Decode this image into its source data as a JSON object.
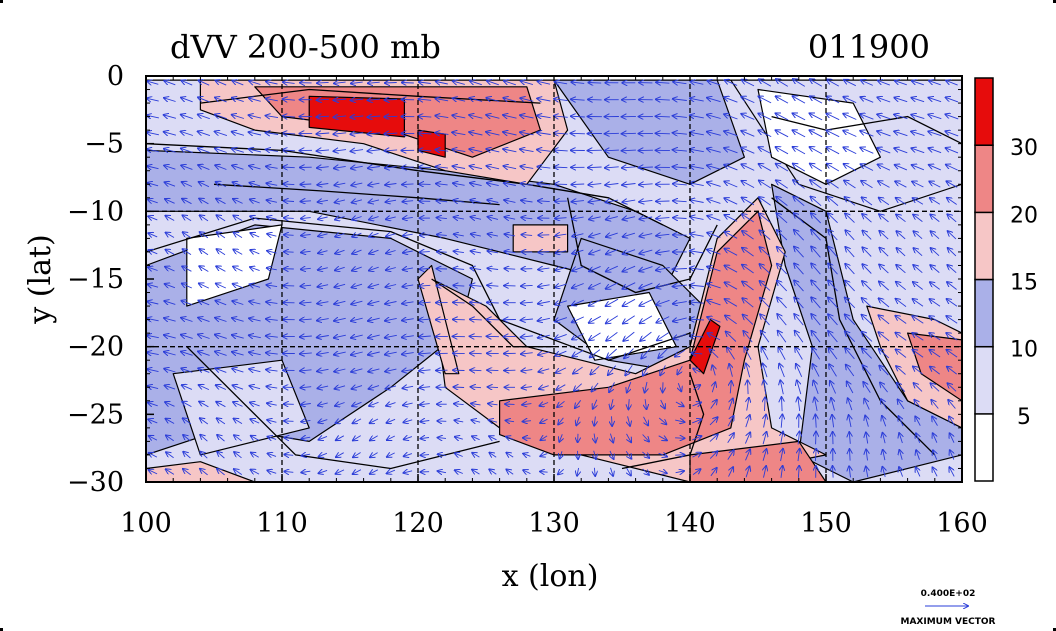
{
  "chart_data": {
    "type": "heatmap",
    "title": "dVV 200-500 mb",
    "date_label": "011900",
    "xlabel": "x (lon)",
    "ylabel": "y (lat)",
    "xlim": [
      100,
      160
    ],
    "ylim": [
      -30,
      0
    ],
    "x_ticks": [
      100,
      110,
      120,
      130,
      140,
      150,
      160
    ],
    "x_tick_labels": [
      "100",
      "110",
      "120",
      "130",
      "140",
      "150",
      "160"
    ],
    "y_ticks": [
      0,
      -5,
      -10,
      -15,
      -20,
      -25,
      -30
    ],
    "y_tick_labels": [
      "0",
      "−5",
      "−10",
      "−15",
      "−20",
      "−25",
      "−30"
    ],
    "grid_lines_x": [
      110,
      120,
      130,
      140,
      150
    ],
    "grid_lines_y": [
      -10,
      -20
    ],
    "grid": "dashed",
    "colorbar": {
      "levels": [
        0,
        5,
        10,
        15,
        20,
        30,
        35
      ],
      "tick_labels": [
        "5",
        "10",
        "15",
        "20",
        "30"
      ],
      "tick_values": [
        5,
        10,
        15,
        20,
        30
      ],
      "colors": [
        "#ffffff",
        "#dcdcf5",
        "#aab0e8",
        "#f6c6c6",
        "#ee8686",
        "#e60c0c"
      ],
      "placement": "right"
    },
    "vector_legend": {
      "value_label": "0.400E+02",
      "caption": "MAXIMUM VECTOR"
    },
    "regions": [
      {
        "level": 1,
        "points": [
          [
            100,
            -0.3
          ],
          [
            160,
            -0.3
          ],
          [
            160,
            -30
          ],
          [
            100,
            -30
          ]
        ]
      },
      {
        "level": 2,
        "points": [
          [
            100,
            -5.5
          ],
          [
            112,
            -6
          ],
          [
            122,
            -7
          ],
          [
            130,
            -8
          ],
          [
            136,
            -10
          ],
          [
            140,
            -12
          ],
          [
            138,
            -16
          ],
          [
            130,
            -14
          ],
          [
            122,
            -12
          ],
          [
            112,
            -10
          ],
          [
            100,
            -10
          ]
        ]
      },
      {
        "level": 2,
        "points": [
          [
            100,
            -14
          ],
          [
            108,
            -11
          ],
          [
            118,
            -12
          ],
          [
            124,
            -15
          ],
          [
            123,
            -19
          ],
          [
            118,
            -23
          ],
          [
            112,
            -27
          ],
          [
            106,
            -26
          ],
          [
            100,
            -28
          ]
        ]
      },
      {
        "level": 2,
        "points": [
          [
            132,
            -12
          ],
          [
            138,
            -14
          ],
          [
            142,
            -18
          ],
          [
            140,
            -22
          ],
          [
            134,
            -21
          ],
          [
            130,
            -18
          ]
        ]
      },
      {
        "level": 2,
        "points": [
          [
            146,
            -8
          ],
          [
            150,
            -10
          ],
          [
            152,
            -18
          ],
          [
            156,
            -24
          ],
          [
            160,
            -26
          ],
          [
            160,
            -28
          ],
          [
            152,
            -30
          ],
          [
            148,
            -28
          ],
          [
            149,
            -20
          ],
          [
            147,
            -14
          ]
        ]
      },
      {
        "level": 2,
        "points": [
          [
            130,
            -0.3
          ],
          [
            142,
            -0.3
          ],
          [
            144,
            -6
          ],
          [
            140,
            -8
          ],
          [
            134,
            -6
          ]
        ]
      },
      {
        "level": 1,
        "points": [
          [
            143,
            -0.3
          ],
          [
            160,
            -0.3
          ],
          [
            160,
            -8
          ],
          [
            154,
            -10
          ],
          [
            148,
            -8
          ]
        ]
      },
      {
        "level": 0,
        "points": [
          [
            145,
            -1
          ],
          [
            152,
            -2
          ],
          [
            154,
            -6
          ],
          [
            150,
            -8
          ],
          [
            146,
            -6
          ]
        ]
      },
      {
        "level": 0,
        "points": [
          [
            103,
            -12
          ],
          [
            110,
            -11
          ],
          [
            109,
            -15
          ],
          [
            103,
            -17
          ]
        ]
      },
      {
        "level": 0,
        "points": [
          [
            131,
            -17
          ],
          [
            137,
            -16
          ],
          [
            139,
            -20
          ],
          [
            133,
            -21
          ]
        ]
      },
      {
        "level": 1,
        "points": [
          [
            102,
            -22
          ],
          [
            110,
            -21
          ],
          [
            112,
            -26
          ],
          [
            104,
            -28
          ]
        ]
      },
      {
        "level": 3,
        "points": [
          [
            104,
            -0.3
          ],
          [
            130,
            -0.3
          ],
          [
            131,
            -4
          ],
          [
            128,
            -8
          ],
          [
            122,
            -7
          ],
          [
            116,
            -5
          ],
          [
            108,
            -4
          ],
          [
            104,
            -2.5
          ]
        ]
      },
      {
        "level": 4,
        "points": [
          [
            108,
            -0.8
          ],
          [
            128,
            -0.8
          ],
          [
            129,
            -4
          ],
          [
            124,
            -6
          ],
          [
            118,
            -4
          ],
          [
            110,
            -3
          ]
        ]
      },
      {
        "level": 5,
        "points": [
          [
            112,
            -1.5
          ],
          [
            119,
            -1.7
          ],
          [
            119,
            -4.5
          ],
          [
            112,
            -3.8
          ]
        ]
      },
      {
        "level": 5,
        "points": [
          [
            120,
            -4
          ],
          [
            122,
            -4.3
          ],
          [
            122,
            -6
          ],
          [
            120,
            -5.5
          ]
        ]
      },
      {
        "level": 3,
        "points": [
          [
            121,
            -15
          ],
          [
            125,
            -17
          ],
          [
            128,
            -20
          ],
          [
            136,
            -22
          ],
          [
            140,
            -20
          ],
          [
            142,
            -12
          ],
          [
            145,
            -9
          ],
          [
            147,
            -13
          ],
          [
            145,
            -20
          ],
          [
            146,
            -26
          ],
          [
            150,
            -28
          ],
          [
            140,
            -30
          ],
          [
            132,
            -28
          ],
          [
            126,
            -26
          ],
          [
            122,
            -23
          ]
        ]
      },
      {
        "level": 4,
        "points": [
          [
            126,
            -24
          ],
          [
            134,
            -23
          ],
          [
            140,
            -21
          ],
          [
            142,
            -13
          ],
          [
            145,
            -10
          ],
          [
            146,
            -14
          ],
          [
            144,
            -21
          ],
          [
            143,
            -26
          ],
          [
            138,
            -28
          ],
          [
            130,
            -28
          ],
          [
            126,
            -26.5
          ]
        ]
      },
      {
        "level": 5,
        "points": [
          [
            140,
            -21
          ],
          [
            141.5,
            -18
          ],
          [
            142.2,
            -18.5
          ],
          [
            141,
            -22
          ]
        ]
      },
      {
        "level": 3,
        "points": [
          [
            153,
            -17
          ],
          [
            158,
            -18
          ],
          [
            160,
            -19
          ],
          [
            160,
            -26
          ],
          [
            156,
            -24
          ],
          [
            154,
            -20
          ]
        ]
      },
      {
        "level": 4,
        "points": [
          [
            156,
            -19
          ],
          [
            160,
            -19.5
          ],
          [
            160,
            -24
          ],
          [
            157,
            -22
          ]
        ]
      },
      {
        "level": 3,
        "points": [
          [
            120,
            -15
          ],
          [
            121,
            -14
          ],
          [
            122,
            -18
          ],
          [
            123,
            -22
          ],
          [
            122,
            -22
          ]
        ]
      },
      {
        "level": 3,
        "points": [
          [
            127,
            -11
          ],
          [
            131,
            -11
          ],
          [
            131,
            -13
          ],
          [
            127,
            -13
          ]
        ]
      },
      {
        "level": 4,
        "points": [
          [
            140,
            -28
          ],
          [
            148,
            -27
          ],
          [
            150,
            -30
          ],
          [
            140,
            -30
          ]
        ]
      },
      {
        "level": 3,
        "points": [
          [
            100,
            -29
          ],
          [
            104,
            -28.5
          ],
          [
            108,
            -30
          ],
          [
            100,
            -30
          ]
        ]
      }
    ],
    "contours": [
      {
        "points": [
          [
            100,
            -5
          ],
          [
            110,
            -5.5
          ],
          [
            120,
            -7
          ],
          [
            128,
            -8
          ],
          [
            134,
            -9
          ],
          [
            138,
            -11
          ]
        ]
      },
      {
        "points": [
          [
            100,
            -13
          ],
          [
            108,
            -10.5
          ],
          [
            118,
            -11.5
          ],
          [
            124,
            -14
          ],
          [
            126,
            -18
          ],
          [
            134,
            -21
          ],
          [
            140,
            -19
          ]
        ]
      },
      {
        "points": [
          [
            103,
            -20
          ],
          [
            107,
            -24
          ],
          [
            111,
            -28
          ],
          [
            118,
            -29
          ],
          [
            126,
            -27
          ]
        ]
      },
      {
        "points": [
          [
            121,
            -15
          ],
          [
            124,
            -17
          ],
          [
            127,
            -20
          ],
          [
            130,
            -20
          ]
        ]
      },
      {
        "points": [
          [
            146,
            -9
          ],
          [
            150,
            -12
          ],
          [
            151,
            -18
          ],
          [
            154,
            -24
          ],
          [
            158,
            -28
          ]
        ]
      },
      {
        "points": [
          [
            131,
            -9
          ],
          [
            132,
            -14
          ],
          [
            136,
            -16
          ],
          [
            140,
            -15
          ],
          [
            142,
            -11
          ]
        ]
      },
      {
        "points": [
          [
            146,
            -3
          ],
          [
            150,
            -4
          ],
          [
            156,
            -3
          ],
          [
            160,
            -5
          ]
        ]
      },
      {
        "points": [
          [
            104,
            -2
          ],
          [
            112,
            -1
          ],
          [
            120,
            -1.5
          ],
          [
            129,
            -2
          ]
        ]
      },
      {
        "points": [
          [
            140,
            -22
          ],
          [
            141,
            -25
          ],
          [
            140,
            -28
          ],
          [
            135,
            -29
          ]
        ]
      },
      {
        "points": [
          [
            105,
            -8
          ],
          [
            113,
            -8.5
          ],
          [
            120,
            -9
          ],
          [
            126,
            -9.5
          ]
        ]
      }
    ],
    "vector_field": {
      "u_scale": "see vector_legend"
    }
  }
}
